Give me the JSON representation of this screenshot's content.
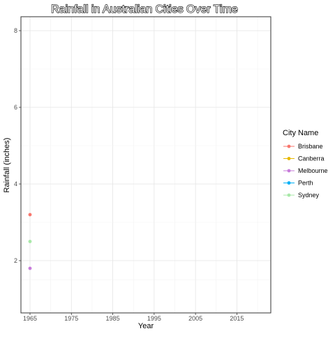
{
  "chart_data": {
    "type": "scatter",
    "title": "Rainfall in Australian Cities Over Time",
    "xlabel": "Year",
    "ylabel": "Rainfall (inches)",
    "xlim": [
      1965,
      2021
    ],
    "ylim": [
      1,
      8
    ],
    "x_ticks": [
      1965,
      1975,
      1985,
      1995,
      2005,
      2015
    ],
    "y_ticks": [
      2,
      4,
      6,
      8
    ],
    "grid": true,
    "legend": {
      "title": "City Name",
      "placement": "right"
    },
    "series": [
      {
        "name": "Brisbane",
        "color": "#F8766D",
        "points": [
          {
            "x": 1965,
            "y": 3.2
          }
        ]
      },
      {
        "name": "Canberra",
        "color": "#E7B800",
        "points": []
      },
      {
        "name": "Melbourne",
        "color": "#C77CDA",
        "points": [
          {
            "x": 1965,
            "y": 1.8
          }
        ]
      },
      {
        "name": "Perth",
        "color": "#00B0F6",
        "points": []
      },
      {
        "name": "Sydney",
        "color": "#A8E8A8",
        "points": [
          {
            "x": 1965,
            "y": 2.5
          }
        ]
      }
    ]
  }
}
